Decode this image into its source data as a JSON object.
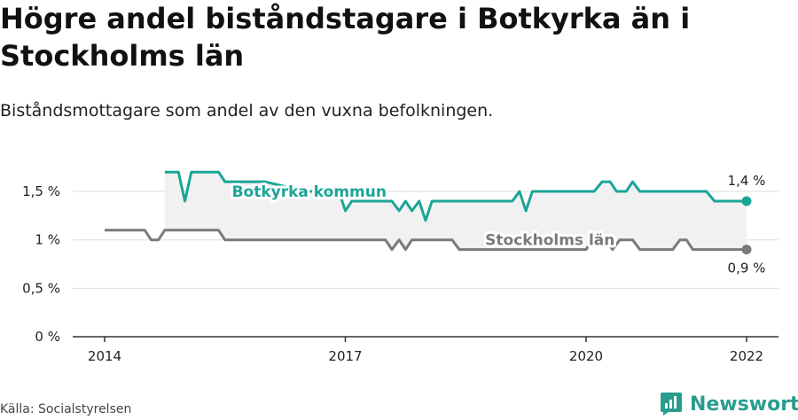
{
  "title": "Högre andel biståndstagare i Botkyrka än i Stockholms län",
  "subtitle": "Biståndsmottagare som andel av den vuxna befolkningen.",
  "source": "Källa: Socialstyrelsen",
  "brand": {
    "name": "Newsworthy",
    "icon": "newsworthy-logo-icon",
    "color": "#2a9d8f"
  },
  "colors": {
    "botkyrka": "#1aa597",
    "stockholm": "#7a797e",
    "band": "#f1f1f1",
    "grid": "#dddddd",
    "axis": "#333333"
  },
  "chart_data": {
    "type": "line",
    "title": "Högre andel biståndstagare i Botkyrka än i Stockholms län",
    "subtitle": "Biståndsmottagare som andel av den vuxna befolkningen.",
    "y_tick_labels": [
      "0 %",
      "0,5 %",
      "1 %",
      "1,5 %"
    ],
    "y_ticks": [
      0,
      0.5,
      1,
      1.5
    ],
    "x_tick_labels": [
      "2014",
      "2017",
      "2020",
      "2022"
    ],
    "x_ticks": [
      2014,
      2017,
      2020,
      2022
    ],
    "xlim": [
      2013.6,
      2022.4
    ],
    "ylim": [
      0,
      1.85
    ],
    "grid": true,
    "series": [
      {
        "name": "Botkyrka kommun",
        "end_label": "1,4 %",
        "points": [
          [
            2014.75,
            1.7
          ],
          [
            2014.92,
            1.7
          ],
          [
            2015.0,
            1.4
          ],
          [
            2015.08,
            1.7
          ],
          [
            2015.42,
            1.7
          ],
          [
            2015.5,
            1.6
          ],
          [
            2016.0,
            1.6
          ],
          [
            2016.5,
            1.5
          ],
          [
            2016.92,
            1.5
          ],
          [
            2017.0,
            1.3
          ],
          [
            2017.08,
            1.4
          ],
          [
            2017.58,
            1.4
          ],
          [
            2017.67,
            1.3
          ],
          [
            2017.75,
            1.4
          ],
          [
            2017.83,
            1.3
          ],
          [
            2017.92,
            1.4
          ],
          [
            2018.0,
            1.2
          ],
          [
            2018.08,
            1.4
          ],
          [
            2019.08,
            1.4
          ],
          [
            2019.17,
            1.5
          ],
          [
            2019.25,
            1.3
          ],
          [
            2019.33,
            1.5
          ],
          [
            2020.1,
            1.5
          ],
          [
            2020.2,
            1.6
          ],
          [
            2020.3,
            1.6
          ],
          [
            2020.38,
            1.5
          ],
          [
            2020.5,
            1.5
          ],
          [
            2020.58,
            1.6
          ],
          [
            2020.67,
            1.5
          ],
          [
            2021.5,
            1.5
          ],
          [
            2021.6,
            1.4
          ],
          [
            2022.0,
            1.4
          ]
        ]
      },
      {
        "name": "Stockholms län",
        "end_label": "0,9 %",
        "points": [
          [
            2014.0,
            1.1
          ],
          [
            2014.5,
            1.1
          ],
          [
            2014.58,
            1.0
          ],
          [
            2014.67,
            1.0
          ],
          [
            2014.75,
            1.1
          ],
          [
            2015.42,
            1.1
          ],
          [
            2015.5,
            1.0
          ],
          [
            2017.5,
            1.0
          ],
          [
            2017.58,
            0.9
          ],
          [
            2017.67,
            1.0
          ],
          [
            2017.75,
            0.9
          ],
          [
            2017.83,
            1.0
          ],
          [
            2018.33,
            1.0
          ],
          [
            2018.42,
            0.9
          ],
          [
            2020.0,
            0.9
          ],
          [
            2020.08,
            1.0
          ],
          [
            2020.25,
            1.0
          ],
          [
            2020.33,
            0.9
          ],
          [
            2020.42,
            1.0
          ],
          [
            2020.58,
            1.0
          ],
          [
            2020.67,
            0.9
          ],
          [
            2021.08,
            0.9
          ],
          [
            2021.17,
            1.0
          ],
          [
            2021.25,
            1.0
          ],
          [
            2021.33,
            0.9
          ],
          [
            2022.0,
            0.9
          ]
        ]
      }
    ]
  }
}
